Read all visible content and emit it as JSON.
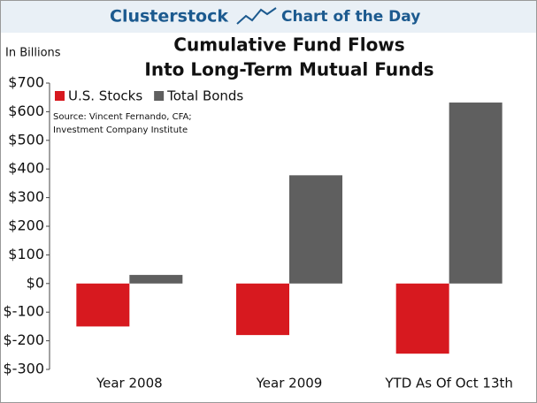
{
  "header": {
    "brand": "Clusterstock",
    "tagline": "Chart of the Day"
  },
  "chart_data": {
    "type": "bar",
    "title": [
      "Cumulative Fund Flows",
      "Into Long-Term Mutual Funds"
    ],
    "y_label": "In Billions",
    "source": [
      "Source: Vincent Fernando, CFA;",
      "Investment Company Institute"
    ],
    "categories": [
      "Year 2008",
      "Year 2009",
      "YTD As Of Oct 13th"
    ],
    "series": [
      {
        "name": "U.S. Stocks",
        "color": "#d7191f",
        "values": [
          -150,
          -180,
          -245
        ]
      },
      {
        "name": "Total Bonds",
        "color": "#5f5f5f",
        "values": [
          30,
          378,
          632
        ]
      }
    ],
    "ylim": [
      -300,
      700
    ],
    "yticks": [
      {
        "value": -300,
        "label": "$-300"
      },
      {
        "value": -200,
        "label": "$-200"
      },
      {
        "value": -100,
        "label": "$-100"
      },
      {
        "value": 0,
        "label": "$0"
      },
      {
        "value": 100,
        "label": "$100"
      },
      {
        "value": 200,
        "label": "$200"
      },
      {
        "value": 300,
        "label": "$300"
      },
      {
        "value": 400,
        "label": "$400"
      },
      {
        "value": 500,
        "label": "$500"
      },
      {
        "value": 600,
        "label": "$600"
      },
      {
        "value": 700,
        "label": "$700"
      }
    ],
    "grid": false,
    "legend": "top-left"
  }
}
